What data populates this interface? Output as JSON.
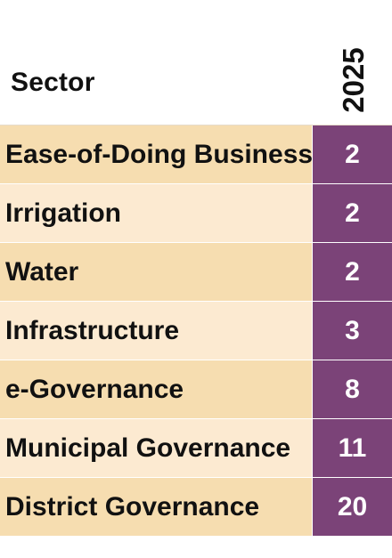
{
  "chart_data": {
    "type": "table",
    "columns": [
      "Sector",
      "2025"
    ],
    "categories": [
      "Ease-of-Doing Business",
      "Irrigation",
      "Water",
      "Infrastructure",
      "e-Governance",
      "Municipal Governance",
      "District Governance"
    ],
    "values": [
      2,
      2,
      2,
      3,
      8,
      11,
      20
    ]
  },
  "colors": {
    "row_dark": "#f6ddb0",
    "row_light": "#fcead1",
    "value_cell": "#7b4378"
  }
}
